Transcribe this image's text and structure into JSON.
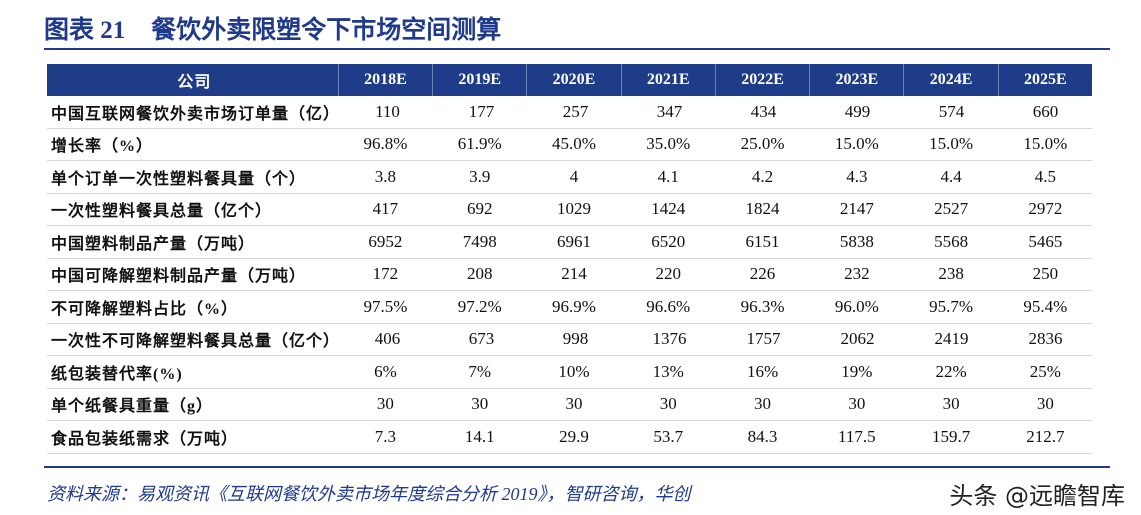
{
  "header": {
    "label": "图表 21",
    "title": "餐饮外卖限塑令下市场空间测算"
  },
  "table": {
    "columns": [
      "公司",
      "2018E",
      "2019E",
      "2020E",
      "2021E",
      "2022E",
      "2023E",
      "2024E",
      "2025E"
    ],
    "rows": [
      [
        "中国互联网餐饮外卖市场订单量（亿）",
        "110",
        "177",
        "257",
        "347",
        "434",
        "499",
        "574",
        "660"
      ],
      [
        "增长率（%）",
        "96.8%",
        "61.9%",
        "45.0%",
        "35.0%",
        "25.0%",
        "15.0%",
        "15.0%",
        "15.0%"
      ],
      [
        "单个订单一次性塑料餐具量（个）",
        "3.8",
        "3.9",
        "4",
        "4.1",
        "4.2",
        "4.3",
        "4.4",
        "4.5"
      ],
      [
        "一次性塑料餐具总量（亿个）",
        "417",
        "692",
        "1029",
        "1424",
        "1824",
        "2147",
        "2527",
        "2972"
      ],
      [
        "中国塑料制品产量（万吨）",
        "6952",
        "7498",
        "6961",
        "6520",
        "6151",
        "5838",
        "5568",
        "5465"
      ],
      [
        "中国可降解塑料制品产量（万吨）",
        "172",
        "208",
        "214",
        "220",
        "226",
        "232",
        "238",
        "250"
      ],
      [
        "不可降解塑料占比（%）",
        "97.5%",
        "97.2%",
        "96.9%",
        "96.6%",
        "96.3%",
        "96.0%",
        "95.7%",
        "95.4%"
      ],
      [
        "一次性不可降解塑料餐具总量（亿个）",
        "406",
        "673",
        "998",
        "1376",
        "1757",
        "2062",
        "2419",
        "2836"
      ],
      [
        "纸包装替代率(%)",
        "6%",
        "7%",
        "10%",
        "13%",
        "16%",
        "19%",
        "22%",
        "25%"
      ],
      [
        "单个纸餐具重量（g）",
        "30",
        "30",
        "30",
        "30",
        "30",
        "30",
        "30",
        "30"
      ],
      [
        "食品包装纸需求（万吨）",
        "7.3",
        "14.1",
        "29.9",
        "53.7",
        "84.3",
        "117.5",
        "159.7",
        "212.7"
      ]
    ]
  },
  "footer": {
    "source": "资料来源：易观资讯《互联网餐饮外卖市场年度综合分析 2019》，智研咨询，华创",
    "watermark": "头条 @远瞻智库"
  }
}
